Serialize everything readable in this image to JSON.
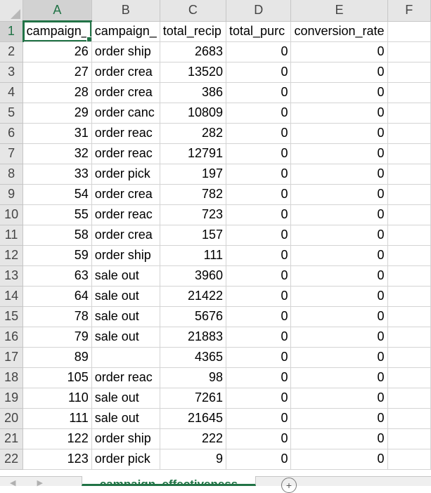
{
  "columns": [
    "A",
    "B",
    "C",
    "D",
    "E",
    "F"
  ],
  "header_row": {
    "row_number": "1",
    "cells": [
      "campaign_",
      "campaign_",
      "total_recip",
      "total_purc",
      "conversion_rate",
      ""
    ]
  },
  "rows": [
    {
      "n": "2",
      "a": "26",
      "b": "order ship",
      "c": "2683",
      "d": "0",
      "e": "0"
    },
    {
      "n": "3",
      "a": "27",
      "b": "order crea",
      "c": "13520",
      "d": "0",
      "e": "0"
    },
    {
      "n": "4",
      "a": "28",
      "b": "order crea",
      "c": "386",
      "d": "0",
      "e": "0"
    },
    {
      "n": "5",
      "a": "29",
      "b": "order canc",
      "c": "10809",
      "d": "0",
      "e": "0"
    },
    {
      "n": "6",
      "a": "31",
      "b": "order reac",
      "c": "282",
      "d": "0",
      "e": "0"
    },
    {
      "n": "7",
      "a": "32",
      "b": "order reac",
      "c": "12791",
      "d": "0",
      "e": "0"
    },
    {
      "n": "8",
      "a": "33",
      "b": "order pick",
      "c": "197",
      "d": "0",
      "e": "0"
    },
    {
      "n": "9",
      "a": "54",
      "b": "order crea",
      "c": "782",
      "d": "0",
      "e": "0"
    },
    {
      "n": "10",
      "a": "55",
      "b": "order reac",
      "c": "723",
      "d": "0",
      "e": "0"
    },
    {
      "n": "11",
      "a": "58",
      "b": "order crea",
      "c": "157",
      "d": "0",
      "e": "0"
    },
    {
      "n": "12",
      "a": "59",
      "b": "order ship",
      "c": "111",
      "d": "0",
      "e": "0"
    },
    {
      "n": "13",
      "a": "63",
      "b": "sale out",
      "c": "3960",
      "d": "0",
      "e": "0"
    },
    {
      "n": "14",
      "a": "64",
      "b": "sale out",
      "c": "21422",
      "d": "0",
      "e": "0"
    },
    {
      "n": "15",
      "a": "78",
      "b": "sale out",
      "c": "5676",
      "d": "0",
      "e": "0"
    },
    {
      "n": "16",
      "a": "79",
      "b": "sale out",
      "c": "21883",
      "d": "0",
      "e": "0"
    },
    {
      "n": "17",
      "a": "89",
      "b": "",
      "c": "4365",
      "d": "0",
      "e": "0"
    },
    {
      "n": "18",
      "a": "105",
      "b": "order reac",
      "c": "98",
      "d": "0",
      "e": "0"
    },
    {
      "n": "19",
      "a": "110",
      "b": "sale out",
      "c": "7261",
      "d": "0",
      "e": "0"
    },
    {
      "n": "20",
      "a": "111",
      "b": "sale out",
      "c": "21645",
      "d": "0",
      "e": "0"
    },
    {
      "n": "21",
      "a": "122",
      "b": "order ship",
      "c": "222",
      "d": "0",
      "e": "0"
    },
    {
      "n": "22",
      "a": "123",
      "b": "order pick",
      "c": "9",
      "d": "0",
      "e": "0"
    }
  ],
  "tabbar": {
    "nav_left": "◀",
    "nav_right": "▶",
    "sheet_tab": "campaign_effectiveness",
    "add_sheet": "+"
  },
  "colors": {
    "accent": "#217346",
    "header_bg": "#e6e6e6",
    "gridline": "#d4d4d4"
  }
}
